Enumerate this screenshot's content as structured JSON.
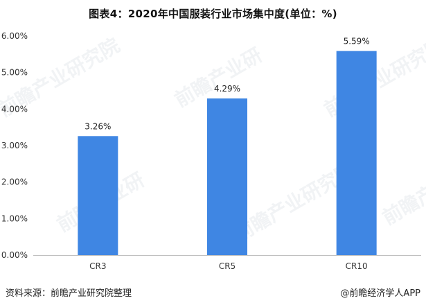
{
  "title": "图表4：2020年中国服装行业市场集中度(单位：%)",
  "source": "资料来源：前瞻产业研究院整理",
  "credit": "@前瞻经济学人APP",
  "watermark": {
    "text": "前瞻产业研究院",
    "short_text": "前瞻产业研"
  },
  "colors": {
    "bar": "#3f86e3",
    "axis": "#bfbfbf",
    "text": "#333333"
  },
  "chart_data": {
    "type": "bar",
    "title": "图表4：2020年中国服装行业市场集中度(单位：%)",
    "categories": [
      "CR3",
      "CR5",
      "CR10"
    ],
    "values": [
      3.26,
      4.29,
      5.59
    ],
    "value_labels": [
      "3.26%",
      "4.29%",
      "5.59%"
    ],
    "ylim": [
      0,
      6
    ],
    "y_ticks": [
      0,
      1,
      2,
      3,
      4,
      5,
      6
    ],
    "y_tick_labels": [
      "0.00%",
      "1.00%",
      "2.00%",
      "3.00%",
      "4.00%",
      "5.00%",
      "6.00%"
    ],
    "grid": false,
    "legend": "none"
  }
}
